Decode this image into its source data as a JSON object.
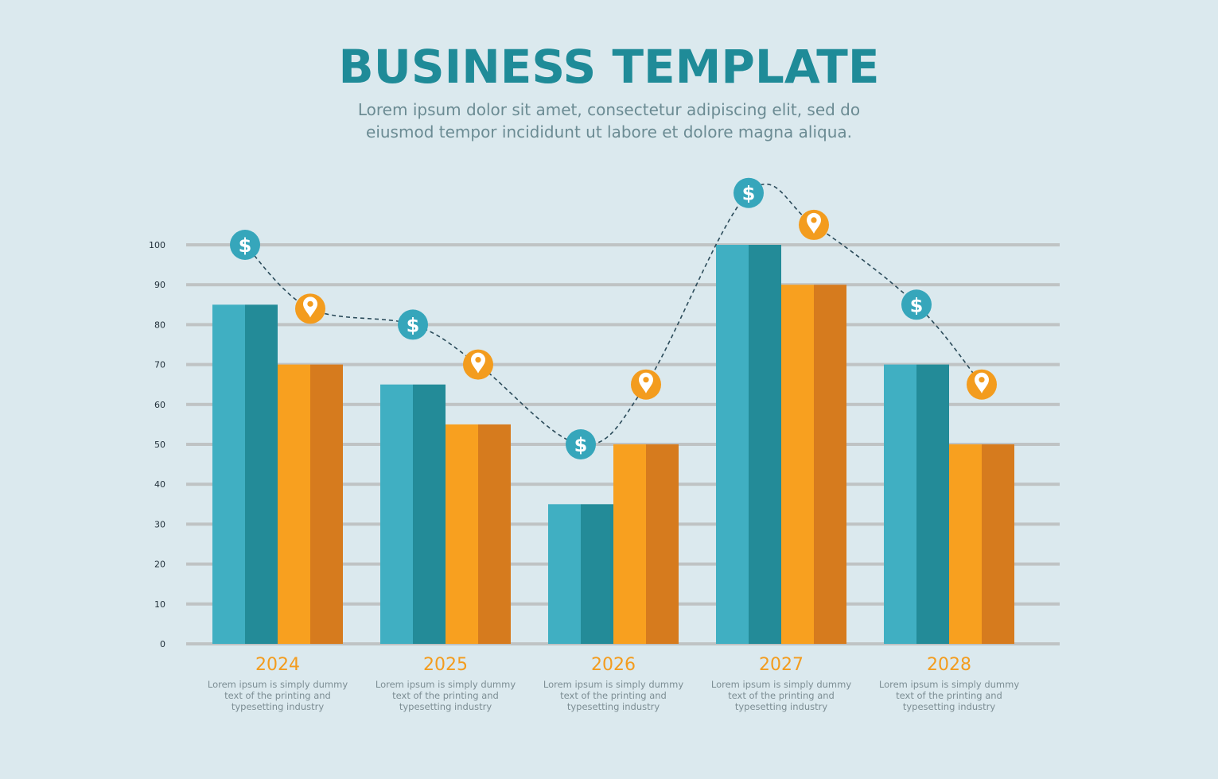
{
  "header": {
    "title": "BUSINESS TEMPLATE",
    "subtitle_line1": "Lorem ipsum dolor sit amet, consectetur adipiscing elit, sed do",
    "subtitle_line2": "eiusmod tempor incididunt ut labore et dolore magna aliqua."
  },
  "colors": {
    "teal_light": "#40afc2",
    "teal_dark": "#238b98",
    "orange_light": "#f8a01f",
    "orange_dark": "#d67b1e",
    "grid": "#bfc3c4",
    "dollar_marker": "#36a6bb",
    "pin_marker": "#f39c1e",
    "dashed_line": "#2b4b5a",
    "year_text": "#f39c1e"
  },
  "icons": {
    "dollar_marker": "dollar-icon",
    "pin_marker": "location-pin-icon"
  },
  "chart_data": {
    "type": "bar",
    "categories": [
      "2024",
      "2025",
      "2026",
      "2027",
      "2028"
    ],
    "descriptions": [
      [
        "Lorem ipsum is simply dummy",
        "text of the printing and",
        "typesetting industry"
      ],
      [
        "Lorem ipsum is simply dummy",
        "text of the printing and",
        "typesetting industry"
      ],
      [
        "Lorem ipsum is simply dummy",
        "text of the printing and",
        "typesetting industry"
      ],
      [
        "Lorem ipsum is simply dummy",
        "text of the printing and",
        "typesetting industry"
      ],
      [
        "Lorem ipsum is simply dummy",
        "text of the printing and",
        "typesetting industry"
      ]
    ],
    "series": [
      {
        "values": [
          85,
          65,
          35,
          100,
          70
        ],
        "color": "#40afc2",
        "shade": "#238b98"
      },
      {
        "values": [
          70,
          55,
          50,
          90,
          50
        ],
        "color": "#f8a01f",
        "shade": "#d67b1e"
      }
    ],
    "line_markers": [
      {
        "icon": "dollar-icon",
        "values": [
          100,
          80,
          50,
          113,
          85
        ]
      },
      {
        "icon": "location-pin-icon",
        "values": [
          84,
          70,
          65,
          105,
          65
        ]
      }
    ],
    "yticks": [
      0,
      10,
      20,
      30,
      40,
      50,
      60,
      70,
      80,
      90,
      100
    ],
    "ylim": [
      0,
      100
    ],
    "grid": true,
    "legend": "none",
    "title": "",
    "xlabel": "",
    "ylabel": ""
  }
}
